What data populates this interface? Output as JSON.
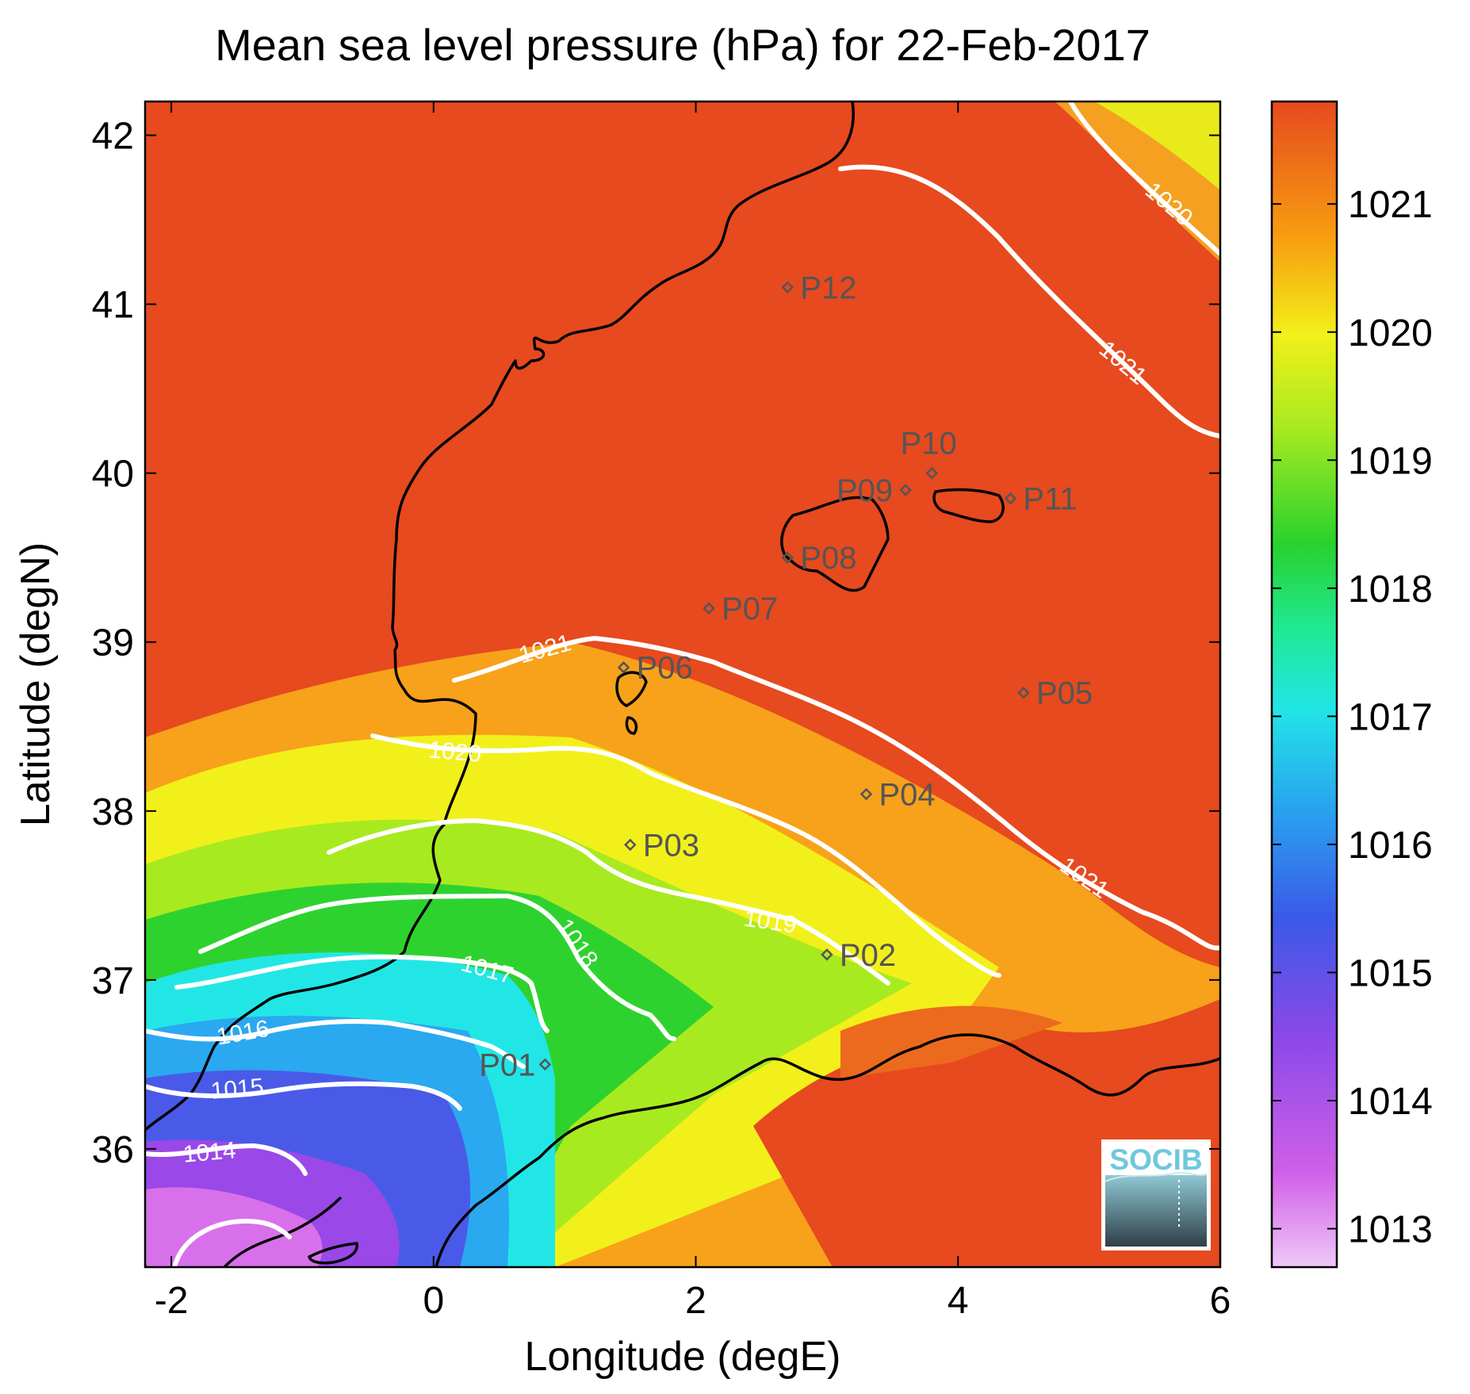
{
  "title": "Mean sea level pressure (hPa) for 22-Feb-2017",
  "xlabel": "Longitude (degE)",
  "ylabel": "Latitude (degN)",
  "x_ticks": [
    "-2",
    "0",
    "2",
    "4",
    "6"
  ],
  "y_ticks": [
    "36",
    "37",
    "38",
    "39",
    "40",
    "41",
    "42"
  ],
  "colorbar_ticks": [
    "1013",
    "1014",
    "1015",
    "1016",
    "1017",
    "1018",
    "1019",
    "1020",
    "1021"
  ],
  "contour_labels": [
    "1014",
    "1015",
    "1016",
    "1017",
    "1018",
    "1019",
    "1020",
    "1021",
    "1021",
    "1021",
    "1020",
    "1021"
  ],
  "stations": [
    "P01",
    "P02",
    "P03",
    "P04",
    "P05",
    "P06",
    "P07",
    "P08",
    "P09",
    "P10",
    "P11",
    "P12"
  ],
  "logo_text": "SOCIB",
  "colors": {
    "high": "#e64a1e",
    "mid": "#f2f01a",
    "green": "#2ed22e",
    "cyan": "#22e6e6",
    "blue": "#4a5ae8",
    "low": "#e8a8f0",
    "contour": "#ffffff",
    "coast": "#000000",
    "station": "#555555"
  },
  "chart_data": {
    "type": "heatmap",
    "variable": "Mean sea level pressure",
    "units": "hPa",
    "date": "22-Feb-2017",
    "xlim": [
      -2.2,
      6
    ],
    "ylim": [
      35.3,
      42.2
    ],
    "colorbar_range": [
      1012.7,
      1021.8
    ],
    "contour_levels": [
      1014,
      1015,
      1016,
      1017,
      1018,
      1019,
      1020,
      1021
    ],
    "stations": [
      {
        "name": "P01",
        "lon": 0.85,
        "lat": 36.5
      },
      {
        "name": "P02",
        "lon": 3.0,
        "lat": 37.15
      },
      {
        "name": "P03",
        "lon": 1.5,
        "lat": 37.8
      },
      {
        "name": "P04",
        "lon": 3.3,
        "lat": 38.1
      },
      {
        "name": "P05",
        "lon": 4.5,
        "lat": 38.7
      },
      {
        "name": "P06",
        "lon": 1.45,
        "lat": 38.85
      },
      {
        "name": "P07",
        "lon": 2.1,
        "lat": 39.2
      },
      {
        "name": "P08",
        "lon": 2.7,
        "lat": 39.5
      },
      {
        "name": "P09",
        "lon": 3.6,
        "lat": 39.9
      },
      {
        "name": "P10",
        "lon": 3.8,
        "lat": 40.0
      },
      {
        "name": "P11",
        "lon": 4.4,
        "lat": 39.85
      },
      {
        "name": "P12",
        "lon": 2.7,
        "lat": 41.1
      }
    ]
  }
}
